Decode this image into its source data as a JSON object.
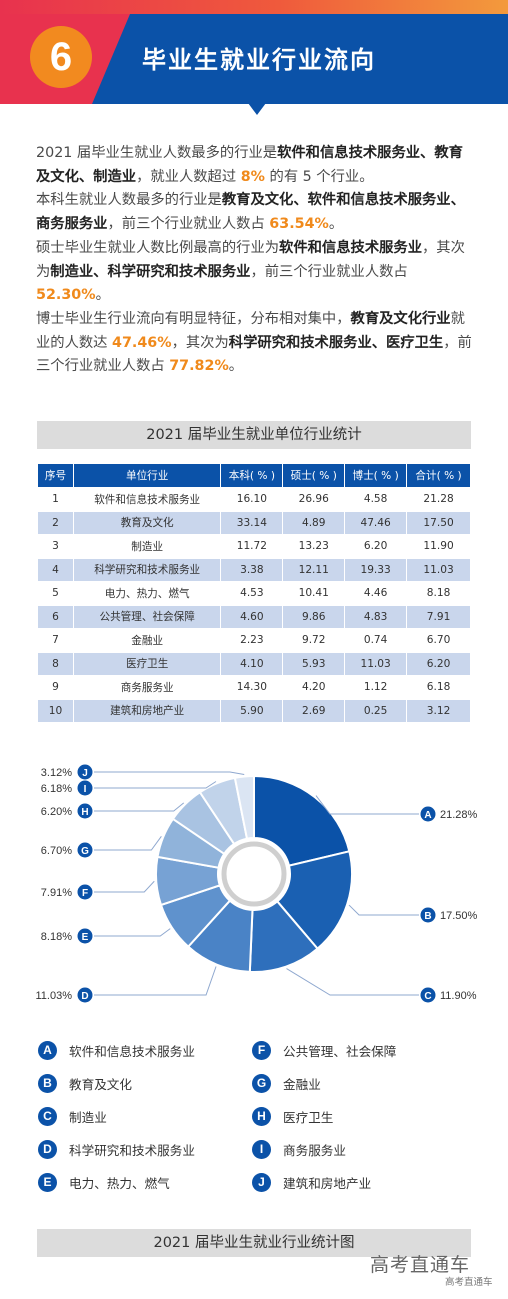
{
  "header": {
    "number": "6",
    "title": "毕业生就业行业流向"
  },
  "intro": {
    "p1": [
      "2021 届毕业生就业人数最多的行业是",
      "软件和信息技术服务业、教育及文化、制造业",
      "，就业人数超过 ",
      "8%",
      " 的有 5 个行业。"
    ],
    "p2": [
      "本科生就业人数最多的行业是",
      "教育及文化、软件和信息技术服务业、商务服务业",
      "，前三个行业就业人数占 ",
      "63.54%",
      "。"
    ],
    "p3": [
      "硕士毕业生就业人数比例最高的行业为",
      "软件和信息技术服务业",
      "，其次为",
      "制造业、科学研究和技术服务业",
      "，前三个行业就业人数占 ",
      "52.30%",
      "。"
    ],
    "p4": [
      "博士毕业生行业流向有明显特征，分布相对集中，",
      "教育及文化行业",
      "就业的人数达 ",
      "47.46%",
      "，其次为",
      "科学研究和技术服务业、医疗卫生",
      "，前三个行业就业人数占 ",
      "77.82%",
      "。"
    ]
  },
  "table": {
    "title": "2021 届毕业生就业单位行业统计",
    "headers": [
      "序号",
      "单位行业",
      "本科( % )",
      "硕士( % )",
      "博士( % )",
      "合计( % )"
    ],
    "rows": [
      [
        "1",
        "软件和信息技术服务业",
        "16.10",
        "26.96",
        "4.58",
        "21.28"
      ],
      [
        "2",
        "教育及文化",
        "33.14",
        "4.89",
        "47.46",
        "17.50"
      ],
      [
        "3",
        "制造业",
        "11.72",
        "13.23",
        "6.20",
        "11.90"
      ],
      [
        "4",
        "科学研究和技术服务业",
        "3.38",
        "12.11",
        "19.33",
        "11.03"
      ],
      [
        "5",
        "电力、热力、燃气",
        "4.53",
        "10.41",
        "4.46",
        "8.18"
      ],
      [
        "6",
        "公共管理、社会保障",
        "4.60",
        "9.86",
        "4.83",
        "7.91"
      ],
      [
        "7",
        "金融业",
        "2.23",
        "9.72",
        "0.74",
        "6.70"
      ],
      [
        "8",
        "医疗卫生",
        "4.10",
        "5.93",
        "11.03",
        "6.20"
      ],
      [
        "9",
        "商务服务业",
        "14.30",
        "4.20",
        "1.12",
        "6.18"
      ],
      [
        "10",
        "建筑和房地产业",
        "5.90",
        "2.69",
        "0.25",
        "3.12"
      ]
    ]
  },
  "chart_data": {
    "type": "pie",
    "title": "2021 届毕业生就业行业统计图",
    "slices": [
      {
        "key": "A",
        "name": "软件和信息技术服务业",
        "value": 21.28,
        "label": "21.28%",
        "color": "#0b52a8"
      },
      {
        "key": "B",
        "name": "教育及文化",
        "value": 17.5,
        "label": "17.50%",
        "color": "#1a60b2"
      },
      {
        "key": "C",
        "name": "制造业",
        "value": 11.9,
        "label": "11.90%",
        "color": "#2e6fbc"
      },
      {
        "key": "D",
        "name": "科学研究和技术服务业",
        "value": 11.03,
        "label": "11.03%",
        "color": "#4a83c6"
      },
      {
        "key": "E",
        "name": "电力、热力、燃气",
        "value": 8.18,
        "label": "8.18%",
        "color": "#5f92cd"
      },
      {
        "key": "F",
        "name": "公共管理、社会保障",
        "value": 7.91,
        "label": "7.91%",
        "color": "#77a2d4"
      },
      {
        "key": "G",
        "name": "金融业",
        "value": 6.7,
        "label": "6.70%",
        "color": "#90b3da"
      },
      {
        "key": "H",
        "name": "医疗卫生",
        "value": 6.2,
        "label": "6.20%",
        "color": "#a9c3e2"
      },
      {
        "key": "I",
        "name": "商务服务业",
        "value": 6.18,
        "label": "6.18%",
        "color": "#c1d3ea"
      },
      {
        "key": "J",
        "name": "建筑和房地产业",
        "value": 3.12,
        "label": "3.12%",
        "color": "#dbe5f3"
      }
    ]
  },
  "footer": {
    "chart_caption": "2021 届毕业生就业行业统计图"
  },
  "watermark": {
    "main": "高考直通车",
    "sub": "高考直通车"
  }
}
